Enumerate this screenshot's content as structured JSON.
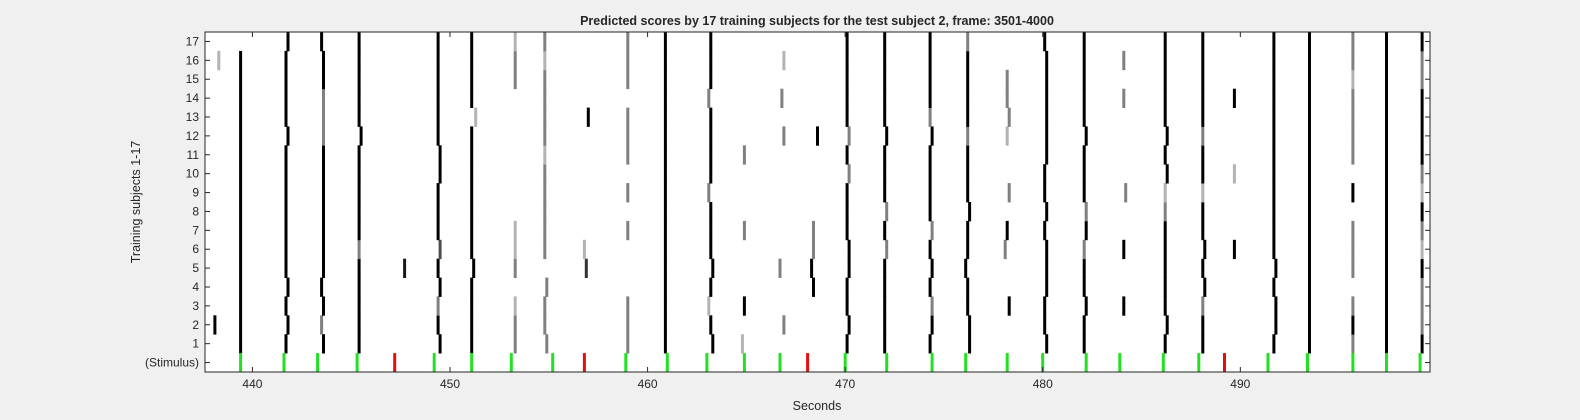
{
  "chart_data": {
    "type": "heatmap",
    "title": "Predicted scores by 17 training subjects for the test subject 2, frame: 3501-4000",
    "xlabel": "Seconds",
    "ylabel": "Training subjects 1-17",
    "xlim": [
      437.6,
      499.6
    ],
    "x_ticks": [
      "440",
      "450",
      "460",
      "470",
      "480",
      "490"
    ],
    "x_tick_values": [
      440,
      450,
      460,
      470,
      480,
      490
    ],
    "y_tick_labels": [
      "(Stimulus)",
      "1",
      "2",
      "3",
      "4",
      "5",
      "6",
      "7",
      "8",
      "9",
      "10",
      "11",
      "12",
      "13",
      "14",
      "15",
      "16",
      "17"
    ],
    "grid": false,
    "colors": {
      "background": "#f0f0f0",
      "plot_bg": "#ffffff",
      "score_high": "#000000",
      "stimulus_correct": "#22e022",
      "stimulus_error": "#e01010"
    },
    "stimulus_times": [
      439.4,
      441.6,
      443.3,
      445.3,
      447.2,
      449.2,
      451.1,
      453.1,
      455.2,
      456.8,
      458.9,
      461.0,
      463.0,
      464.9,
      466.7,
      468.1,
      470.0,
      472.1,
      474.4,
      476.1,
      478.2,
      480.0,
      482.2,
      483.9,
      486.1,
      487.9,
      489.2,
      491.4,
      493.4,
      495.7,
      497.4,
      499.1
    ],
    "stimulus_kind": [
      "correct",
      "correct",
      "correct",
      "correct",
      "error",
      "correct",
      "correct",
      "correct",
      "correct",
      "error",
      "correct",
      "correct",
      "correct",
      "correct",
      "correct",
      "error",
      "correct",
      "correct",
      "correct",
      "correct",
      "correct",
      "correct",
      "correct",
      "correct",
      "correct",
      "correct",
      "error",
      "correct",
      "correct",
      "correct",
      "correct",
      "correct"
    ],
    "band_centers": [
      438.2,
      439.4,
      441.5,
      443.2,
      445.3,
      447.2,
      449.2,
      451.1,
      453.1,
      455.1,
      456.8,
      458.9,
      460.9,
      462.9,
      464.8,
      466.7,
      468.3,
      470.1,
      472.0,
      474.2,
      476.0,
      478.1,
      480.0,
      482.1,
      484.0,
      486.1,
      487.9,
      489.5,
      491.4,
      493.5,
      495.6,
      497.4,
      499.0
    ],
    "subject_scores": [
      [
        0,
        1,
        1,
        1,
        1,
        0,
        1,
        1,
        0.5,
        0.5,
        0,
        0.5,
        1,
        1,
        0.3,
        0,
        0,
        1,
        1,
        1,
        1,
        0,
        1,
        1,
        0,
        1,
        1,
        0,
        1,
        1,
        0.5,
        1,
        1
      ],
      [
        1,
        1,
        1,
        0.5,
        1,
        0,
        1,
        1,
        0.5,
        0.5,
        0,
        0.5,
        1,
        1,
        0,
        0.5,
        0,
        1,
        1,
        1,
        1,
        0,
        1,
        1,
        0,
        1,
        1,
        0,
        1,
        1,
        1,
        1,
        0.5
      ],
      [
        0,
        1,
        1,
        1,
        1,
        0,
        0.5,
        1,
        0.3,
        0.5,
        0,
        0.5,
        1,
        0.3,
        1,
        0,
        0,
        1,
        1,
        0.5,
        1,
        1,
        1,
        1,
        1,
        1,
        0.5,
        0,
        1,
        1,
        0.5,
        1,
        0.5
      ],
      [
        0,
        1,
        1,
        1,
        1,
        0,
        1,
        1,
        0,
        0.5,
        0,
        0,
        1,
        1,
        0,
        0,
        1,
        1,
        1,
        1,
        1,
        0,
        1,
        1,
        0,
        1,
        1,
        0,
        1,
        1,
        0,
        1,
        0.5
      ],
      [
        0,
        1,
        1,
        1,
        1,
        0.9,
        1,
        1,
        0.5,
        0,
        0.8,
        0,
        1,
        1,
        0,
        0.5,
        1,
        1,
        1,
        1,
        1,
        0,
        1,
        1,
        0,
        1,
        1,
        0,
        1,
        1,
        0.5,
        1,
        1
      ],
      [
        0,
        1,
        1,
        1,
        0.5,
        0,
        0.7,
        1,
        0.3,
        0.5,
        0.3,
        0,
        1,
        1,
        0,
        0,
        0.5,
        1,
        0.5,
        1,
        1,
        0.5,
        1,
        0.5,
        1,
        1,
        1,
        1,
        1,
        1,
        0.5,
        1,
        0.3
      ],
      [
        0,
        1,
        1,
        1,
        1,
        0,
        1,
        1,
        0.3,
        0.5,
        0,
        0.5,
        1,
        1,
        0.5,
        0,
        0.5,
        1,
        1,
        0.5,
        1,
        1,
        1,
        1,
        0,
        1,
        1,
        0,
        1,
        1,
        0.5,
        1,
        0.5
      ],
      [
        0,
        1,
        1,
        1,
        1,
        0,
        1,
        1,
        0,
        0.5,
        0,
        0,
        1,
        1,
        0,
        0,
        0,
        1,
        0.5,
        1,
        1,
        0,
        1,
        0.5,
        0,
        0.5,
        1,
        0,
        1,
        1,
        0,
        1,
        1
      ],
      [
        0,
        1,
        1,
        1,
        1,
        0,
        1,
        1,
        0,
        0.5,
        0,
        0.5,
        1,
        0.5,
        0,
        0,
        0,
        1,
        1,
        1,
        1,
        0.5,
        1,
        1,
        0.5,
        0.3,
        0.3,
        0,
        1,
        1,
        1,
        1,
        0.3
      ],
      [
        0,
        1,
        1,
        1,
        1,
        0,
        1,
        1,
        0,
        0.5,
        0,
        0,
        1,
        1,
        0,
        0,
        0,
        0.5,
        1,
        1,
        1,
        0,
        1,
        1,
        0,
        1,
        1,
        0.3,
        1,
        1,
        0,
        1,
        0.5
      ],
      [
        0,
        1,
        1,
        1,
        1,
        0,
        1,
        1,
        0,
        0.3,
        0,
        0.5,
        1,
        1,
        0.5,
        0,
        0,
        1,
        1,
        1,
        1,
        0,
        1,
        1,
        0,
        1,
        1,
        0,
        1,
        1,
        0.5,
        1,
        1
      ],
      [
        0,
        1,
        1,
        0.5,
        1,
        0,
        1,
        1,
        0,
        0.5,
        0,
        0.5,
        1,
        1,
        0,
        0.5,
        1,
        0.5,
        1,
        1,
        0.5,
        0.3,
        1,
        1,
        0,
        1,
        0.5,
        0,
        1,
        1,
        0.5,
        1,
        1
      ],
      [
        0,
        1,
        1,
        0.5,
        1,
        0,
        1,
        0.3,
        0,
        0.5,
        1,
        0.5,
        1,
        1,
        0,
        0,
        0,
        1,
        1,
        0.5,
        1,
        0.5,
        1,
        1,
        0,
        1,
        1,
        0,
        1,
        1,
        0.5,
        1,
        1
      ],
      [
        0,
        1,
        1,
        0.5,
        1,
        0,
        1,
        1,
        0,
        0.5,
        0,
        0,
        1,
        0.5,
        0,
        0.5,
        0,
        1,
        1,
        1,
        1,
        0.5,
        1,
        1,
        0.5,
        1,
        1,
        1,
        1,
        1,
        0.5,
        1,
        1
      ],
      [
        0,
        1,
        1,
        1,
        1,
        0,
        1,
        1,
        0.5,
        0.5,
        0,
        0.5,
        1,
        1,
        0,
        0,
        0,
        1,
        1,
        1,
        1,
        0.5,
        1,
        1,
        0,
        1,
        1,
        0,
        1,
        1,
        0.3,
        1,
        0.5
      ],
      [
        0.3,
        1,
        1,
        1,
        1,
        0,
        1,
        1,
        0.5,
        0.3,
        0,
        0.5,
        1,
        1,
        0,
        0.3,
        0,
        1,
        1,
        1,
        1,
        0,
        1,
        1,
        0.5,
        1,
        1,
        0,
        1,
        1,
        0.5,
        1,
        0.5
      ],
      [
        0,
        0,
        1,
        1,
        1,
        0,
        1,
        1,
        0.3,
        0.5,
        0,
        0.5,
        1,
        1,
        0,
        0,
        0,
        1,
        1,
        1,
        0.5,
        0,
        1,
        1,
        0,
        1,
        1,
        0,
        1,
        1,
        0.5,
        1,
        1
      ]
    ],
    "subject_offsets": [
      [
        0,
        0,
        0.2,
        0.4,
        0.1,
        0,
        0.3,
        0,
        0.2,
        -0.2,
        0,
        0.1,
        0,
        0.4,
        0,
        0,
        0,
        0,
        0,
        0.1,
        0.3,
        0,
        0.2,
        0,
        0,
        0.1,
        0.2,
        0,
        0.3,
        0,
        0.1,
        0,
        0.2
      ],
      [
        -0.1,
        0,
        0.3,
        0.3,
        0.1,
        0,
        0.2,
        0,
        0.2,
        -0.3,
        0,
        0.1,
        0,
        0.3,
        0,
        0.2,
        0,
        0.1,
        0,
        0.2,
        0.3,
        0,
        0.1,
        0,
        0,
        0.2,
        0.2,
        0,
        0.4,
        0,
        0.1,
        0,
        0.2
      ],
      [
        0,
        0,
        0.2,
        0.4,
        0.1,
        0,
        0.2,
        0,
        0.2,
        -0.3,
        0,
        0.1,
        0,
        0.2,
        0.1,
        0,
        0,
        0,
        0,
        0.2,
        0.2,
        0.2,
        0.1,
        0.1,
        0.1,
        0.1,
        0.2,
        0,
        0.4,
        0,
        0.1,
        0,
        0.2
      ],
      [
        0,
        0,
        0.3,
        0.3,
        0.1,
        0,
        0.3,
        0,
        0.2,
        -0.2,
        0,
        0.1,
        0,
        0.3,
        0,
        0,
        0.1,
        0,
        0,
        0.1,
        0.2,
        0,
        0.2,
        0,
        0,
        0.1,
        0.3,
        0,
        0.3,
        0,
        0.1,
        0,
        0.2
      ],
      [
        0,
        0,
        0.2,
        0.4,
        0.1,
        0.5,
        0.2,
        0.1,
        0.2,
        0,
        0.1,
        0.1,
        0,
        0.4,
        0,
        0,
        0,
        0.1,
        0,
        0.2,
        0.1,
        0,
        0.2,
        0,
        0,
        0.1,
        0.2,
        0,
        0.4,
        0,
        0.1,
        0,
        0.2
      ],
      [
        0,
        0,
        0.2,
        0.4,
        0.1,
        0,
        0.3,
        0,
        0.2,
        -0.3,
        0,
        0.1,
        0,
        0.3,
        0,
        0,
        0.1,
        0.1,
        0.1,
        0.1,
        0.2,
        0,
        0.2,
        0,
        0.1,
        0.1,
        0.3,
        0.2,
        0.3,
        0,
        0.1,
        0,
        0.2
      ],
      [
        0,
        0,
        0.2,
        0.4,
        0.1,
        0,
        0.2,
        0,
        0.2,
        -0.3,
        0,
        0.1,
        0,
        0.3,
        0.1,
        0,
        0.1,
        0,
        0,
        0.2,
        0.2,
        0.1,
        0.1,
        0.1,
        0,
        0.1,
        0.2,
        0,
        0.3,
        0,
        0.1,
        0,
        0.2
      ],
      [
        0,
        0,
        0.2,
        0.4,
        0.1,
        0,
        0.2,
        0,
        0.2,
        -0.3,
        0,
        0.1,
        0,
        0.3,
        0,
        0,
        0,
        0,
        0.1,
        0.1,
        0.3,
        0,
        0.2,
        0.1,
        0,
        0.1,
        0.2,
        0,
        0.3,
        0,
        0.1,
        0,
        0.2
      ],
      [
        0,
        0,
        0.2,
        0.4,
        0.1,
        0,
        0.2,
        0,
        0.2,
        -0.3,
        0,
        0.1,
        0,
        0.2,
        0,
        0,
        0,
        0,
        0,
        0.1,
        0.2,
        0.2,
        0.1,
        0,
        0.2,
        0.1,
        0.2,
        0,
        0.3,
        0,
        0.1,
        0,
        0.2
      ],
      [
        0,
        0,
        0.2,
        0.4,
        0.1,
        0,
        0.3,
        0,
        0.2,
        -0.3,
        0,
        0.1,
        0,
        0.3,
        0,
        0,
        0,
        0.1,
        0,
        0.1,
        0.2,
        0,
        0.1,
        0,
        0,
        0.2,
        0.2,
        0.2,
        0.3,
        0,
        0.1,
        0,
        0.2
      ],
      [
        0,
        0,
        0.2,
        0.4,
        0.1,
        0,
        0.3,
        0,
        0.2,
        -0.3,
        0,
        0.1,
        0,
        0.3,
        0.1,
        0,
        0,
        0,
        0,
        0.1,
        0.2,
        0,
        0.2,
        0,
        0,
        0.1,
        0.2,
        0,
        0.3,
        0,
        0.1,
        0,
        0.2
      ],
      [
        0,
        0,
        0.3,
        0.4,
        0.2,
        0,
        0.2,
        0,
        0.2,
        -0.3,
        0,
        0.1,
        0,
        0.3,
        0,
        0.2,
        0.3,
        0.1,
        0.1,
        0.2,
        0.2,
        0.1,
        0.2,
        0.1,
        0,
        0.2,
        0.2,
        0,
        0.3,
        0,
        0.1,
        0,
        0.2
      ],
      [
        0,
        0,
        0.2,
        0.4,
        0.1,
        0,
        0.2,
        0.2,
        0.2,
        -0.3,
        0.2,
        0.1,
        0,
        0.3,
        0,
        0,
        0,
        0,
        0,
        0.1,
        0.2,
        0.2,
        0.2,
        0,
        0,
        0.1,
        0.2,
        0,
        0.3,
        0,
        0.1,
        0,
        0.2
      ],
      [
        0,
        0,
        0.2,
        0.4,
        0.1,
        0,
        0.2,
        0,
        0.2,
        -0.3,
        0,
        0.1,
        0,
        0.2,
        0,
        0.1,
        0,
        0,
        0,
        0.1,
        0.2,
        0.1,
        0.2,
        0,
        0.1,
        0.1,
        0.2,
        0.2,
        0.3,
        0,
        0.1,
        0,
        0.2
      ],
      [
        0,
        0,
        0.2,
        0.4,
        0.1,
        0,
        0.2,
        0,
        0.2,
        -0.3,
        0,
        0.1,
        0,
        0.3,
        0,
        0,
        0,
        0,
        0,
        0.1,
        0.2,
        0.1,
        0.2,
        0,
        0,
        0.1,
        0.2,
        0,
        0.3,
        0,
        0.1,
        0,
        0.2
      ],
      [
        0.1,
        0,
        0.2,
        0.4,
        0.1,
        0,
        0.2,
        0,
        0.2,
        -0.3,
        0,
        0.1,
        0,
        0.3,
        0,
        0.2,
        0,
        0,
        0,
        0.1,
        0.2,
        0,
        0.2,
        0,
        0.1,
        0.1,
        0.2,
        0,
        0.3,
        0,
        0.1,
        0,
        0.2
      ],
      [
        0,
        0,
        0.3,
        0.3,
        0.1,
        0,
        0.2,
        0,
        0.2,
        -0.3,
        0,
        0.1,
        0,
        0.3,
        0,
        0,
        0,
        0,
        0,
        0.1,
        0.2,
        0,
        0.1,
        0,
        0,
        0.1,
        0.2,
        0,
        0.3,
        0,
        0.1,
        0,
        0.2
      ]
    ]
  }
}
